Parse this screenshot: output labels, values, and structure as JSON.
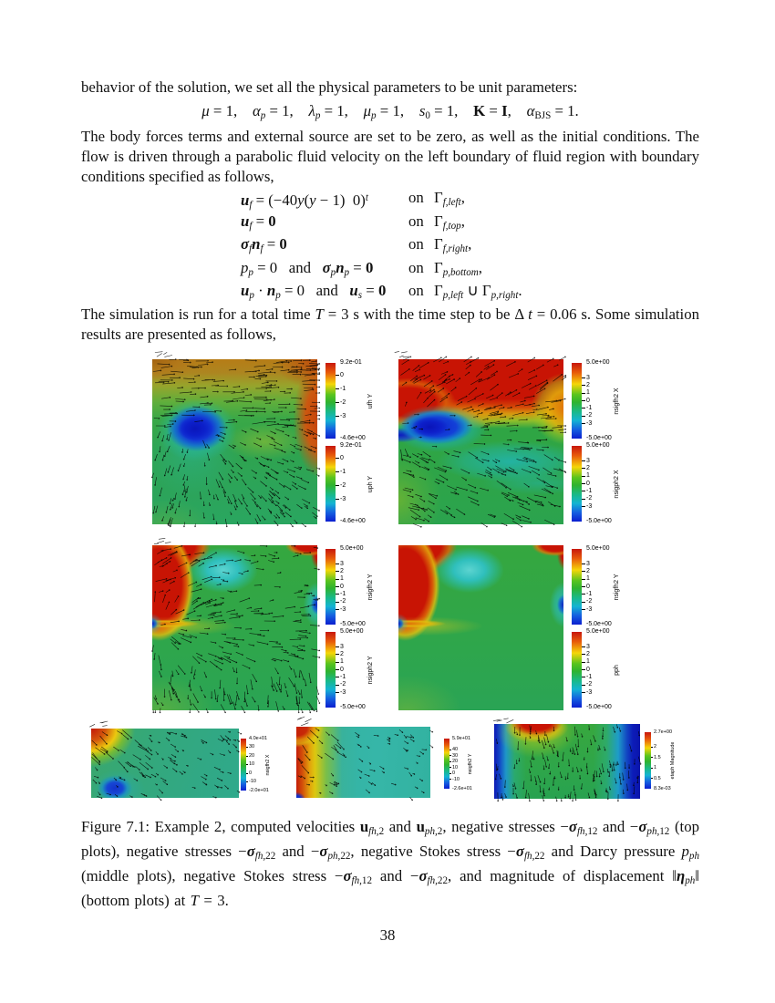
{
  "page": {
    "number": "38"
  },
  "para1": "behavior of the solution, we set all the physical parameters to be unit parameters:",
  "params_eq": [
    [
      "i",
      "μ"
    ],
    [
      "",
      " = 1,    "
    ],
    [
      "i",
      "α"
    ],
    [
      "sb i",
      "p"
    ],
    [
      "",
      " = 1,    "
    ],
    [
      "i",
      "λ"
    ],
    [
      "sb i",
      "p"
    ],
    [
      "",
      " = 1,    "
    ],
    [
      "i",
      "μ"
    ],
    [
      "sb i",
      "p"
    ],
    [
      "",
      " = 1,    "
    ],
    [
      "i",
      "s"
    ],
    [
      "sb",
      "0"
    ],
    [
      "",
      " = 1,    "
    ],
    [
      "b",
      "K"
    ],
    [
      "",
      " = "
    ],
    [
      "b",
      "I"
    ],
    [
      "",
      ",    "
    ],
    [
      "i",
      "α"
    ],
    [
      "sb",
      "BJS"
    ],
    [
      "",
      " = 1."
    ]
  ],
  "para2": "The body forces terms and external source are set to be zero, as well as the initial conditions. The flow is driven through a parabolic fluid velocity on the left boundary of fluid region with boundary conditions specified as follows,",
  "bc": {
    "rows": [
      {
        "lhs": [
          [
            "bi",
            "u"
          ],
          [
            "sb i",
            "f"
          ],
          [
            "",
            " = (−40"
          ],
          [
            "i",
            "y"
          ],
          [
            "",
            "("
          ],
          [
            "i",
            "y"
          ],
          [
            "",
            " − 1)  0)"
          ],
          [
            "sp i",
            "t"
          ]
        ],
        "on": "on",
        "rhs": [
          [
            "",
            "Γ"
          ],
          [
            "sb i",
            "f,left"
          ],
          [
            "",
            ","
          ]
        ]
      },
      {
        "lhs": [
          [
            "bi",
            "u"
          ],
          [
            "sb i",
            "f"
          ],
          [
            "",
            " = "
          ],
          [
            "b",
            "0"
          ]
        ],
        "on": "on",
        "rhs": [
          [
            "",
            "Γ"
          ],
          [
            "sb i",
            "f,top"
          ],
          [
            "",
            ","
          ]
        ]
      },
      {
        "lhs": [
          [
            "bi",
            "σ"
          ],
          [
            "sb i",
            "f"
          ],
          [
            "bi",
            "n"
          ],
          [
            "sb i",
            "f"
          ],
          [
            "",
            " = "
          ],
          [
            "b",
            "0"
          ]
        ],
        "on": "on",
        "rhs": [
          [
            "",
            "Γ"
          ],
          [
            "sb i",
            "f,right"
          ],
          [
            "",
            ","
          ]
        ]
      },
      {
        "lhs": [
          [
            "i",
            "p"
          ],
          [
            "sb i",
            "p"
          ],
          [
            "",
            " = 0   and   "
          ],
          [
            "bi",
            "σ"
          ],
          [
            "sb i",
            "p"
          ],
          [
            "bi",
            "n"
          ],
          [
            "sb i",
            "p"
          ],
          [
            "",
            " = "
          ],
          [
            "b",
            "0"
          ]
        ],
        "on": "on",
        "rhs": [
          [
            "",
            "Γ"
          ],
          [
            "sb i",
            "p,bottom"
          ],
          [
            "",
            ","
          ]
        ]
      },
      {
        "lhs": [
          [
            "bi",
            "u"
          ],
          [
            "sb i",
            "p"
          ],
          [
            "",
            " · "
          ],
          [
            "bi",
            "n"
          ],
          [
            "sb i",
            "p"
          ],
          [
            "",
            " = 0   and   "
          ],
          [
            "bi",
            "u"
          ],
          [
            "sb i",
            "s"
          ],
          [
            "",
            " = "
          ],
          [
            "b",
            "0"
          ]
        ],
        "on": "on",
        "rhs": [
          [
            "",
            "Γ"
          ],
          [
            "sb i",
            "p,left"
          ],
          [
            "",
            " ∪ Γ"
          ],
          [
            "sb i",
            "p,right"
          ],
          [
            "",
            "."
          ]
        ]
      }
    ]
  },
  "para3": [
    [
      "",
      "The simulation is run for a total time "
    ],
    [
      "i",
      "T"
    ],
    [
      "",
      " = 3 s with the time step to be Δ "
    ],
    [
      "i",
      "t"
    ],
    [
      "",
      " = 0.06 s. Some simulation results are presented as follows,"
    ]
  ],
  "figure": {
    "caption": [
      [
        "",
        "Figure 7.1: Example 2, computed velocities "
      ],
      [
        "b",
        "u"
      ],
      [
        "sb i",
        "fh,"
      ],
      [
        "sb",
        "2"
      ],
      [
        "",
        " and "
      ],
      [
        "b",
        "u"
      ],
      [
        "sb i",
        "ph,"
      ],
      [
        "sb",
        "2"
      ],
      [
        "",
        ", negative stresses −"
      ],
      [
        "bi",
        "σ"
      ],
      [
        "sb i",
        "fh,"
      ],
      [
        "sb",
        "12"
      ],
      [
        "",
        " and −"
      ],
      [
        "bi",
        "σ"
      ],
      [
        "sb i",
        "ph,"
      ],
      [
        "sb",
        "12"
      ],
      [
        "",
        " (top plots), negative stresses −"
      ],
      [
        "bi",
        "σ"
      ],
      [
        "sb i",
        "fh,"
      ],
      [
        "sb",
        "22"
      ],
      [
        "",
        " and −"
      ],
      [
        "bi",
        "σ"
      ],
      [
        "sb i",
        "ph,"
      ],
      [
        "sb",
        "22"
      ],
      [
        "",
        ", negative Stokes stress −"
      ],
      [
        "bi",
        "σ"
      ],
      [
        "sb i",
        "fh,"
      ],
      [
        "sb",
        "22"
      ],
      [
        "",
        " and Darcy pressure "
      ],
      [
        "i",
        "p"
      ],
      [
        "sb i",
        "ph"
      ],
      [
        "",
        " (middle plots), negative Stokes stress −"
      ],
      [
        "bi",
        "σ"
      ],
      [
        "sb i",
        "fh,"
      ],
      [
        "sb",
        "12"
      ],
      [
        "",
        " and −"
      ],
      [
        "bi",
        "σ"
      ],
      [
        "sb i",
        "fh,"
      ],
      [
        "sb",
        "22"
      ],
      [
        "",
        ", and magnitude of displacement ‖"
      ],
      [
        "bi",
        "η"
      ],
      [
        "sb i",
        "ph"
      ],
      [
        "",
        "‖ (bottom plots) at "
      ],
      [
        "i",
        "T"
      ],
      [
        "",
        " = 3."
      ]
    ],
    "colorbars": {
      "ufh": {
        "label": "ufh Y",
        "maxText": "9.2e-01",
        "minText": "-4.6e+00",
        "max": 0.92,
        "min": -4.6,
        "ticks": [
          0,
          -1,
          -2,
          -3
        ]
      },
      "uph": {
        "label": "uph Y",
        "maxText": "9.2e-01",
        "minText": "-4.6e+00",
        "max": 0.92,
        "min": -4.6,
        "ticks": [
          0,
          -1,
          -2,
          -3
        ]
      },
      "nsigfh2X": {
        "label": "nsigfh2 X",
        "maxText": "5.0e+00",
        "minText": "-5.0e+00",
        "max": 5,
        "min": -5,
        "ticks": [
          3,
          2,
          1,
          0,
          -1,
          -2,
          -3
        ]
      },
      "nsigph2X": {
        "label": "nsigph2 X",
        "maxText": "5.0e+00",
        "minText": "-5.0e+00",
        "max": 5,
        "min": -5,
        "ticks": [
          3,
          2,
          1,
          0,
          -1,
          -2,
          -3
        ]
      },
      "nsigfh2Y": {
        "label": "nsigfh2 Y",
        "maxText": "5.0e+00",
        "minText": "-5.0e+00",
        "max": 5,
        "min": -5,
        "ticks": [
          3,
          2,
          1,
          0,
          -1,
          -2,
          -3
        ]
      },
      "nsigph2Y": {
        "label": "nsigph2 Y",
        "maxText": "5.0e+00",
        "minText": "-5.0e+00",
        "max": 5,
        "min": -5,
        "ticks": [
          3,
          2,
          1,
          0,
          -1,
          -2,
          -3
        ]
      },
      "nsigfh2Ymr": {
        "label": "nsigfh2 Y",
        "maxText": "5.0e+00",
        "minText": "-5.0e+00",
        "max": 5,
        "min": -5,
        "ticks": [
          3,
          2,
          1,
          0,
          -1,
          -2,
          -3
        ]
      },
      "pph": {
        "label": "pph",
        "maxText": "5.0e+00",
        "minText": "-5.0e+00",
        "max": 5,
        "min": -5,
        "ticks": [
          3,
          2,
          1,
          0,
          -1,
          -2,
          -3
        ]
      },
      "bl": {
        "label": "nsigfh2 X",
        "maxText": "4.0e+01",
        "minText": "-2.0e+01",
        "max": 40,
        "min": -20,
        "ticks": [
          30,
          20,
          10,
          0,
          -10
        ]
      },
      "bm": {
        "label": "nsigfh2 Y",
        "maxText": "5.9e+01",
        "minText": "-2.6e+01",
        "max": 59,
        "min": -26,
        "ticks": [
          40,
          30,
          20,
          10,
          0,
          -10
        ]
      },
      "br": {
        "label": "etaph Magnitude",
        "maxText": "2.7e+00",
        "minText": "8.3e-03",
        "max": 2.7,
        "min": 0.0083,
        "ticks": [
          2,
          1.5,
          1,
          0.5
        ]
      }
    }
  }
}
